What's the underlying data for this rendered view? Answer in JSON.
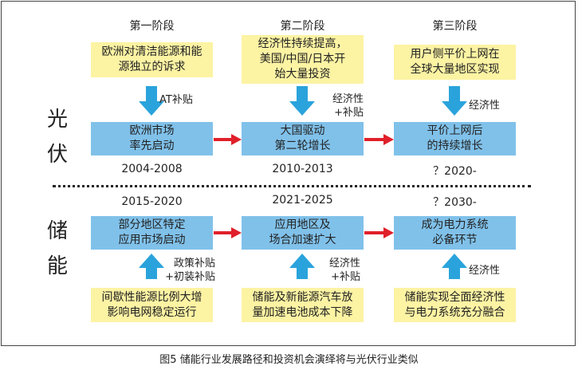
{
  "stages": [
    "第一阶段",
    "第二阶段",
    "第三阶段"
  ],
  "pv": {
    "label": "光伏",
    "drivers": [
      "欧洲对清洁能源和能\n源独立的诉求",
      "经济性持续提高，\n美国/中国/日本开\n始大量投资",
      "用户侧平价上网在\n全球大量地区实现"
    ],
    "arrow_labels": [
      "AT补贴",
      "经济性\n+补贴",
      "经济性"
    ],
    "phases": [
      "欧洲市场\n率先启动",
      "大国驱动\n第二轮增长",
      "平价上网后\n的持续增长"
    ],
    "years": [
      "2004-2008",
      "2010-2013",
      "？2020-"
    ]
  },
  "storage": {
    "label": "储能",
    "years": [
      "2015-2020",
      "2021-2025",
      "？2030-"
    ],
    "phases": [
      "部分地区特定\n应用市场启动",
      "应用地区及\n场合加速扩大",
      "成为电力系统\n必备环节"
    ],
    "arrow_labels": [
      "政策补贴\n+初装补贴",
      "经济性\n+补贴",
      "经济性"
    ],
    "drivers": [
      "间歇性能源比例大增\n影响电网稳定运行",
      "储能及新能源汽车放\n量加速电池成本下降",
      "储能实现全面经济性\n与电力系统充分融合"
    ]
  },
  "caption": "图5  储能行业发展路径和投资机会演绎将与光伏行业类似",
  "colors": {
    "driver_box": "#fcf3a3",
    "phase_box": "#80c1ea",
    "driver_arrow": "#2aa3dc",
    "flow_arrow": "#e0202a"
  }
}
